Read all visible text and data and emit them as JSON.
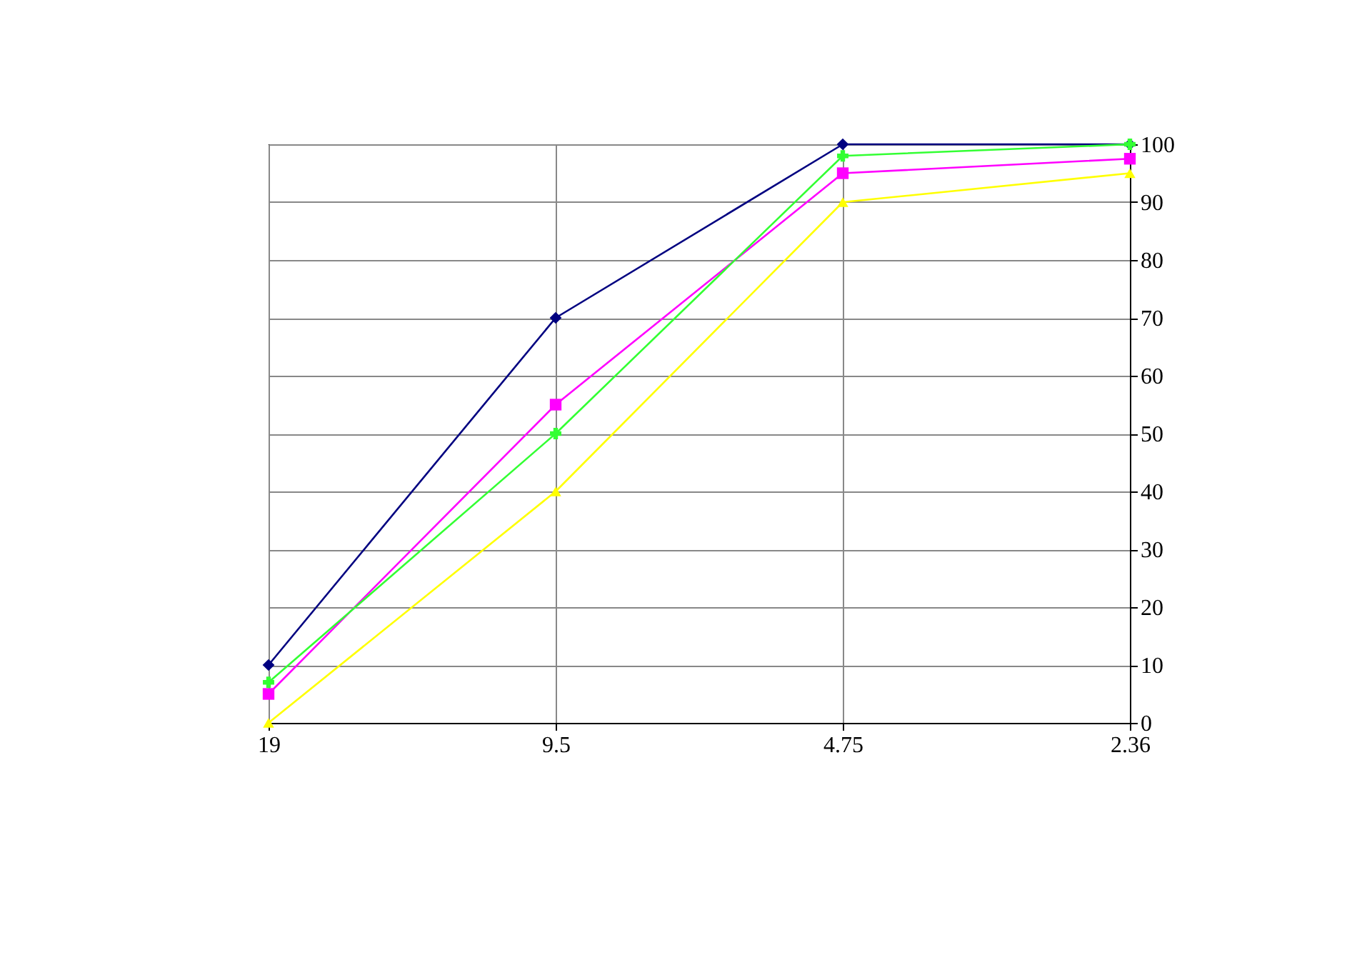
{
  "chart_data": {
    "type": "line",
    "categories": [
      "19",
      "9.5",
      "4.75",
      "2.36"
    ],
    "series": [
      {
        "color": "#000080",
        "marker": "diamond",
        "values": [
          10,
          70,
          100,
          100
        ]
      },
      {
        "color": "#ff00ff",
        "marker": "square",
        "values": [
          5,
          55,
          95,
          97.5
        ]
      },
      {
        "color": "#33ff33",
        "marker": "cross",
        "values": [
          7,
          50,
          98,
          100
        ]
      },
      {
        "color": "#ffff00",
        "marker": "triangle",
        "values": [
          0,
          40,
          90,
          95
        ]
      }
    ],
    "ylim": [
      0,
      100
    ],
    "yticks": [
      0,
      10,
      20,
      30,
      40,
      50,
      60,
      70,
      80,
      90,
      100
    ],
    "grid": true,
    "legend": false,
    "line_style": "solid"
  }
}
